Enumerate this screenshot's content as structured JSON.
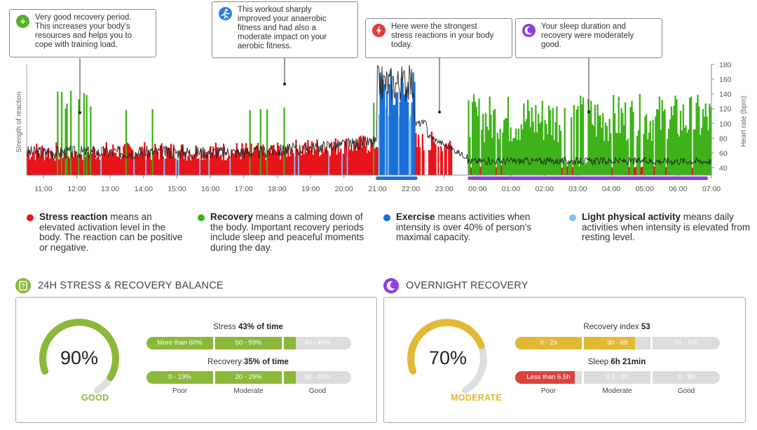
{
  "callouts": [
    {
      "text": "Very good recovery period.\nThis increases your body's\nresources and helps you to\ncope with training load.",
      "icon": "plus-icon",
      "glyph": "+",
      "color": "#5ab031"
    },
    {
      "text": "This workout sharply\nimproved your anaerobic\nfitness and had also a\nmoderate impact on your\naerobic fitness.",
      "icon": "running-icon",
      "glyph": "🏃",
      "color": "#2a7fd8"
    },
    {
      "text": "Here were the strongest\nstress reactions in your body\ntoday.",
      "icon": "lightning-icon",
      "glyph": "⚡",
      "color": "#e53935"
    },
    {
      "text": "Your sleep duration and\nrecovery were moderately\ngood.",
      "icon": "moon-icon",
      "glyph": "☾",
      "color": "#8e3fd6"
    }
  ],
  "chart_data": {
    "type": "bar",
    "ylabel_left": "Strength of reaction",
    "ylabel_right": "Heart rate (bpm)",
    "x_ticks": [
      "11:00",
      "12:00",
      "13:00",
      "14:00",
      "15:00",
      "16:00",
      "17:00",
      "18:00",
      "19:00",
      "20:00",
      "21:00",
      "22:00",
      "23:00",
      "00:00",
      "01:00",
      "02:00",
      "03:00",
      "04:00",
      "05:00",
      "06:00",
      "07:00"
    ],
    "y_right_ticks": [
      40,
      60,
      80,
      100,
      120,
      140,
      160,
      180
    ],
    "y_right_range": [
      30,
      180
    ],
    "x_range_hours": [
      10.5,
      31.0
    ],
    "colors": {
      "stress": "#e8141b",
      "recovery": "#3fb21a",
      "exercise": "#1a6fd8",
      "light": "#82c0f5",
      "heart_rate": "#222222",
      "exercise_marker": "#1e6fd0",
      "sleep_marker": "#8f3fe0"
    },
    "periods": [
      {
        "type": "stress",
        "start": 10.5,
        "end": 21.0,
        "level_bpm": 62
      },
      {
        "type": "recovery_burst",
        "start": 11.4,
        "end": 12.4,
        "level_bpm": 128
      },
      {
        "type": "exercise",
        "start": 21.0,
        "end": 22.1,
        "level_bpm": 160
      },
      {
        "type": "stress",
        "start": 22.1,
        "end": 23.3,
        "level_bpm": 78
      },
      {
        "type": "recovery",
        "start": 23.7,
        "end": 31.0,
        "level_bpm": 118
      }
    ],
    "markers": [
      {
        "name": "exercise",
        "start": 20.95,
        "end": 22.2
      },
      {
        "name": "sleep",
        "start": 23.7,
        "end": 30.9
      }
    ]
  },
  "legend": [
    {
      "term": "Stress reaction",
      "text": " means an elevated activation level in the body. The reaction can be positive or negative.",
      "color": "#e8141b"
    },
    {
      "term": "Recovery",
      "text": " means a calming down of the body. Important recovery periods include sleep and peaceful moments during the day.",
      "color": "#3fb21a"
    },
    {
      "term": "Exercise",
      "text": " means activities when intensity is over 40% of person's maximal capacity.",
      "color": "#1a6fd8"
    },
    {
      "term": "Light physical activity",
      "text": " means daily activities when intensity is elevated from resting level.",
      "color": "#82c0f5"
    }
  ],
  "balance": {
    "title": "24H STRESS & RECOVERY BALANCE",
    "icon": "question-icon",
    "icon_glyph": "?",
    "icon_color": "#8cb83a",
    "gauge_value": "90%",
    "gauge_fraction": 0.9,
    "gauge_label": "GOOD",
    "color": "#8cb83a",
    "stress_title": "Stress ",
    "stress_value": "43% of time",
    "stress_fraction": 0.43,
    "stress_segments": [
      "More than 60%",
      "50 - 59%",
      "40 - 49%"
    ],
    "recovery_title": "Recovery ",
    "recovery_value": "35% of time",
    "recovery_fraction": 0.35,
    "recovery_segments": [
      "0 - 19%",
      "20 - 29%",
      "30 - 40%"
    ],
    "foot": [
      "Poor",
      "Moderate",
      "Good"
    ]
  },
  "overnight": {
    "title": "OVERNIGHT RECOVERY",
    "icon": "moon-icon",
    "icon_glyph": "☾",
    "icon_color": "#8f3fe0",
    "gauge_value": "70%",
    "gauge_fraction": 0.7,
    "gauge_label": "MODERATE",
    "color": "#e3b833",
    "index_title": "Recovery index ",
    "index_value": "53",
    "index_fraction": 0.53,
    "index_segments": [
      "0 - 29",
      "30 - 69",
      "70 - 100"
    ],
    "sleep_title": "Sleep ",
    "sleep_value": "6h 21min",
    "sleep_fraction": 0.4,
    "sleep_segments": [
      "Less than 6.5h",
      "6.5 - 8h",
      "8 - 9h"
    ],
    "sleep_color": "#d9443c",
    "foot": [
      "Poor",
      "Moderate",
      "Good"
    ]
  }
}
